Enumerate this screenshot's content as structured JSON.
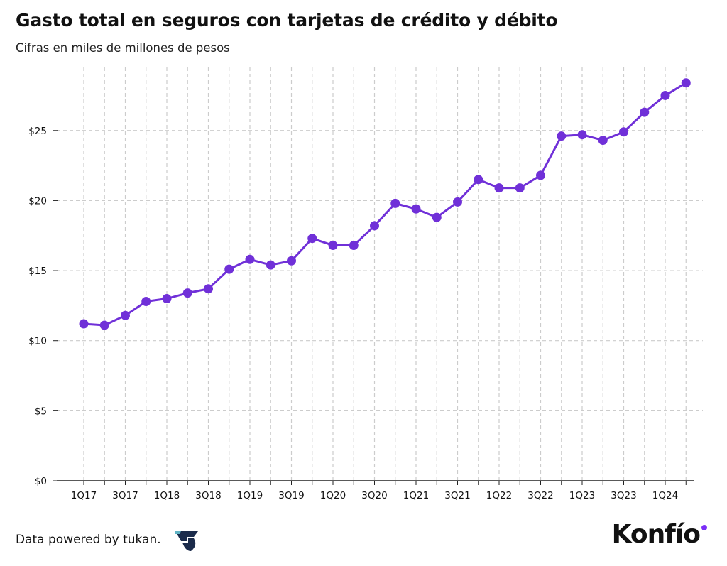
{
  "header": {
    "title": "Gasto total en seguros con tarjetas de crédito y débito",
    "subtitle": "Cifras en miles de millones de pesos"
  },
  "footer": {
    "credit": "Data powered by tukan.",
    "credit_logo_icon": "tukan-logo-icon",
    "brand": "Konfío",
    "brand_dot_color": "#7b2ff7"
  },
  "colors": {
    "series": "#7030d8",
    "grid": "#cccccc",
    "axis": "#222222"
  },
  "chart_data": {
    "type": "line",
    "x": [
      "1Q17",
      "2Q17",
      "3Q17",
      "4Q17",
      "1Q18",
      "2Q18",
      "3Q18",
      "4Q18",
      "1Q19",
      "2Q19",
      "3Q19",
      "4Q19",
      "1Q20",
      "2Q20",
      "3Q20",
      "4Q20",
      "1Q21",
      "2Q21",
      "3Q21",
      "4Q21",
      "1Q22",
      "2Q22",
      "3Q22",
      "4Q22",
      "1Q23",
      "2Q23",
      "3Q23",
      "4Q23",
      "1Q24",
      "2Q24"
    ],
    "x_tick_labels": [
      "1Q17",
      "",
      "3Q17",
      "",
      "1Q18",
      "",
      "3Q18",
      "",
      "1Q19",
      "",
      "3Q19",
      "",
      "1Q20",
      "",
      "3Q20",
      "",
      "1Q21",
      "",
      "3Q21",
      "",
      "1Q22",
      "",
      "3Q22",
      "",
      "1Q23",
      "",
      "3Q23",
      "",
      "1Q24",
      ""
    ],
    "series": [
      {
        "values": [
          11.2,
          11.1,
          11.8,
          12.8,
          13.0,
          13.4,
          13.7,
          15.1,
          15.8,
          15.4,
          15.7,
          17.3,
          16.8,
          16.8,
          18.2,
          19.8,
          19.4,
          18.8,
          19.9,
          21.5,
          20.9,
          20.9,
          21.8,
          24.6,
          24.7,
          24.3,
          24.9,
          26.3,
          27.5,
          28.4
        ]
      }
    ],
    "y_ticks": [
      0,
      5,
      10,
      15,
      20,
      25
    ],
    "y_tick_labels": [
      "$0",
      "$5",
      "$10",
      "$15",
      "$20",
      "$25"
    ],
    "ylim": [
      0,
      29.5
    ],
    "title": "Gasto total en seguros con tarjetas de crédito y débito",
    "subtitle": "Cifras en miles de millones de pesos",
    "xlabel": "",
    "ylabel": "",
    "grid": true,
    "legend": "none"
  }
}
